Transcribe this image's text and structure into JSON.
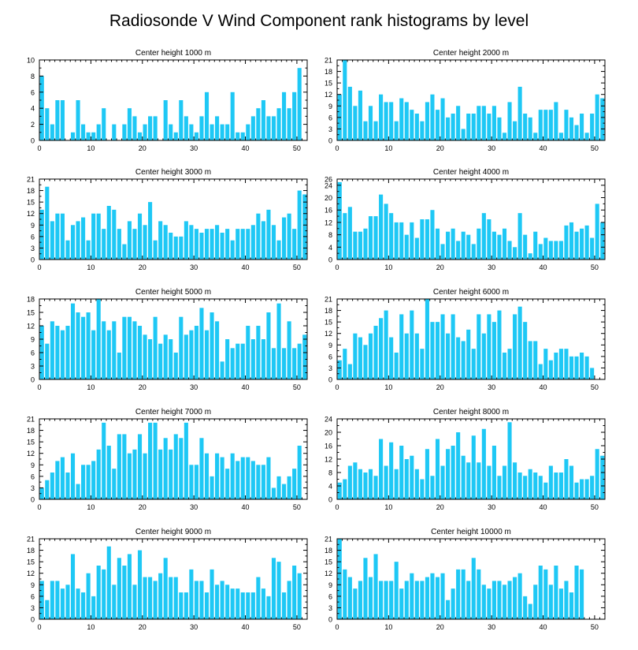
{
  "figure": {
    "title": "Radiosonde V Wind Component rank histograms by level",
    "bar_color": "#1EC8F5",
    "frame_color": "#000000"
  },
  "chart_data": [
    {
      "type": "bar",
      "title": "Center height 1000 m",
      "x": [
        0,
        1,
        2,
        3,
        4,
        5,
        6,
        7,
        8,
        9,
        10,
        11,
        12,
        13,
        14,
        15,
        16,
        17,
        18,
        19,
        20,
        21,
        22,
        23,
        24,
        25,
        26,
        27,
        28,
        29,
        30,
        31,
        32,
        33,
        34,
        35,
        36,
        37,
        38,
        39,
        40,
        41,
        42,
        43,
        44,
        45,
        46,
        47,
        48,
        49,
        50,
        51
      ],
      "values": [
        8,
        4,
        2,
        5,
        5,
        0,
        1,
        5,
        2,
        1,
        1,
        2,
        4,
        0,
        2,
        0,
        2,
        4,
        3,
        1,
        2,
        3,
        3,
        0,
        5,
        2,
        1,
        5,
        3,
        2,
        1,
        3,
        6,
        2,
        3,
        2,
        2,
        6,
        1,
        1,
        2,
        3,
        4,
        5,
        3,
        3,
        4,
        6,
        4,
        6,
        9,
        0
      ],
      "xlim": [
        0,
        52
      ],
      "ylim": [
        0,
        10
      ],
      "xticks": [
        0,
        10,
        20,
        30,
        40,
        50
      ],
      "yticks": [
        0,
        2,
        4,
        6,
        8,
        10
      ],
      "grid": false
    },
    {
      "type": "bar",
      "title": "Center height 2000 m",
      "x": [
        0,
        1,
        2,
        3,
        4,
        5,
        6,
        7,
        8,
        9,
        10,
        11,
        12,
        13,
        14,
        15,
        16,
        17,
        18,
        19,
        20,
        21,
        22,
        23,
        24,
        25,
        26,
        27,
        28,
        29,
        30,
        31,
        32,
        33,
        34,
        35,
        36,
        37,
        38,
        39,
        40,
        41,
        42,
        43,
        44,
        45,
        46,
        47,
        48,
        49,
        50,
        51
      ],
      "values": [
        12,
        21,
        14,
        9,
        13,
        5,
        9,
        5,
        12,
        10,
        10,
        5,
        11,
        10,
        8,
        7,
        5,
        10,
        12,
        8,
        11,
        6,
        7,
        9,
        3,
        7,
        7,
        9,
        9,
        7,
        9,
        6,
        2,
        10,
        5,
        14,
        7,
        6,
        2,
        8,
        8,
        8,
        10,
        2,
        8,
        6,
        4,
        7,
        2,
        7,
        12,
        11
      ],
      "xlim": [
        0,
        52
      ],
      "ylim": [
        0,
        21
      ],
      "xticks": [
        0,
        10,
        20,
        30,
        40,
        50
      ],
      "yticks": [
        0,
        3,
        6,
        9,
        12,
        15,
        18,
        21
      ],
      "grid": false
    },
    {
      "type": "bar",
      "title": "Center height 3000 m",
      "x": [
        0,
        1,
        2,
        3,
        4,
        5,
        6,
        7,
        8,
        9,
        10,
        11,
        12,
        13,
        14,
        15,
        16,
        17,
        18,
        19,
        20,
        21,
        22,
        23,
        24,
        25,
        26,
        27,
        28,
        29,
        30,
        31,
        32,
        33,
        34,
        35,
        36,
        37,
        38,
        39,
        40,
        41,
        42,
        43,
        44,
        45,
        46,
        47,
        48,
        49,
        50,
        51
      ],
      "values": [
        13,
        19,
        10,
        12,
        12,
        5,
        9,
        10,
        11,
        5,
        12,
        12,
        8,
        14,
        13,
        8,
        4,
        10,
        8,
        12,
        9,
        15,
        5,
        10,
        9,
        7,
        6,
        6,
        10,
        9,
        8,
        7,
        8,
        8,
        9,
        7,
        8,
        5,
        8,
        8,
        8,
        9,
        12,
        10,
        13,
        9,
        5,
        11,
        12,
        8,
        18,
        17
      ],
      "xlim": [
        0,
        52
      ],
      "ylim": [
        0,
        21
      ],
      "xticks": [
        0,
        10,
        20,
        30,
        40,
        50
      ],
      "yticks": [
        0,
        3,
        6,
        9,
        12,
        15,
        18,
        21
      ],
      "grid": false
    },
    {
      "type": "bar",
      "title": "Center height 4000 m",
      "x": [
        0,
        1,
        2,
        3,
        4,
        5,
        6,
        7,
        8,
        9,
        10,
        11,
        12,
        13,
        14,
        15,
        16,
        17,
        18,
        19,
        20,
        21,
        22,
        23,
        24,
        25,
        26,
        27,
        28,
        29,
        30,
        31,
        32,
        33,
        34,
        35,
        36,
        37,
        38,
        39,
        40,
        41,
        42,
        43,
        44,
        45,
        46,
        47,
        48,
        49,
        50,
        51
      ],
      "values": [
        25,
        15,
        17,
        9,
        9,
        10,
        14,
        14,
        21,
        18,
        15,
        12,
        12,
        8,
        12,
        7,
        13,
        13,
        16,
        10,
        5,
        9,
        10,
        6,
        9,
        8,
        5,
        10,
        15,
        13,
        9,
        8,
        10,
        6,
        4,
        15,
        8,
        2,
        9,
        5,
        7,
        6,
        6,
        6,
        11,
        12,
        9,
        10,
        11,
        7,
        18,
        12
      ],
      "xlim": [
        0,
        52
      ],
      "ylim": [
        0,
        26
      ],
      "xticks": [
        0,
        10,
        20,
        30,
        40,
        50
      ],
      "yticks": [
        0,
        4,
        8,
        12,
        16,
        20,
        24,
        26
      ],
      "grid": false
    },
    {
      "type": "bar",
      "title": "Center height 5000 m",
      "x": [
        0,
        1,
        2,
        3,
        4,
        5,
        6,
        7,
        8,
        9,
        10,
        11,
        12,
        13,
        14,
        15,
        16,
        17,
        18,
        19,
        20,
        21,
        22,
        23,
        24,
        25,
        26,
        27,
        28,
        29,
        30,
        31,
        32,
        33,
        34,
        35,
        36,
        37,
        38,
        39,
        40,
        41,
        42,
        43,
        44,
        45,
        46,
        47,
        48,
        49,
        50,
        51
      ],
      "values": [
        12,
        8,
        13,
        12,
        11,
        12,
        17,
        15,
        14,
        15,
        11,
        18,
        13,
        11,
        13,
        6,
        14,
        14,
        13,
        12,
        10,
        9,
        14,
        8,
        10,
        9,
        6,
        14,
        10,
        11,
        12,
        16,
        11,
        15,
        13,
        4,
        9,
        7,
        8,
        8,
        12,
        9,
        12,
        9,
        15,
        7,
        17,
        7,
        13,
        7,
        8,
        10
      ],
      "xlim": [
        0,
        52
      ],
      "ylim": [
        0,
        18
      ],
      "xticks": [
        0,
        10,
        20,
        30,
        40,
        50
      ],
      "yticks": [
        0,
        3,
        6,
        9,
        12,
        15,
        18
      ],
      "grid": false
    },
    {
      "type": "bar",
      "title": "Center height 6000 m",
      "x": [
        0,
        1,
        2,
        3,
        4,
        5,
        6,
        7,
        8,
        9,
        10,
        11,
        12,
        13,
        14,
        15,
        16,
        17,
        18,
        19,
        20,
        21,
        22,
        23,
        24,
        25,
        26,
        27,
        28,
        29,
        30,
        31,
        32,
        33,
        34,
        35,
        36,
        37,
        38,
        39,
        40,
        41,
        42,
        43,
        44,
        45,
        46,
        47,
        48,
        49,
        50,
        51
      ],
      "values": [
        5,
        8,
        4,
        12,
        11,
        9,
        12,
        14,
        16,
        18,
        11,
        7,
        17,
        12,
        18,
        12,
        8,
        21,
        15,
        15,
        17,
        12,
        17,
        11,
        10,
        13,
        8,
        17,
        12,
        17,
        15,
        18,
        7,
        8,
        17,
        19,
        15,
        10,
        10,
        4,
        8,
        5,
        7,
        8,
        8,
        6,
        6,
        7,
        6,
        3,
        0,
        0
      ],
      "xlim": [
        0,
        52
      ],
      "ylim": [
        0,
        21
      ],
      "xticks": [
        0,
        10,
        20,
        30,
        40,
        50
      ],
      "yticks": [
        0,
        3,
        6,
        9,
        12,
        15,
        18,
        21
      ],
      "grid": false
    },
    {
      "type": "bar",
      "title": "Center height 7000 m",
      "x": [
        0,
        1,
        2,
        3,
        4,
        5,
        6,
        7,
        8,
        9,
        10,
        11,
        12,
        13,
        14,
        15,
        16,
        17,
        18,
        19,
        20,
        21,
        22,
        23,
        24,
        25,
        26,
        27,
        28,
        29,
        30,
        31,
        32,
        33,
        34,
        35,
        36,
        37,
        38,
        39,
        40,
        41,
        42,
        43,
        44,
        45,
        46,
        47,
        48,
        49,
        50,
        51
      ],
      "values": [
        3,
        5,
        7,
        10,
        11,
        7,
        12,
        4,
        9,
        9,
        10,
        13,
        20,
        14,
        8,
        17,
        17,
        12,
        13,
        17,
        12,
        20,
        20,
        13,
        16,
        13,
        17,
        16,
        20,
        9,
        9,
        16,
        12,
        6,
        12,
        11,
        8,
        12,
        10,
        11,
        11,
        10,
        9,
        9,
        11,
        3,
        6,
        4,
        6,
        8,
        14,
        0
      ],
      "xlim": [
        0,
        52
      ],
      "ylim": [
        0,
        21
      ],
      "xticks": [
        0,
        10,
        20,
        30,
        40,
        50
      ],
      "yticks": [
        0,
        3,
        6,
        9,
        12,
        15,
        18,
        21
      ],
      "grid": false
    },
    {
      "type": "bar",
      "title": "Center height 8000 m",
      "x": [
        0,
        1,
        2,
        3,
        4,
        5,
        6,
        7,
        8,
        9,
        10,
        11,
        12,
        13,
        14,
        15,
        16,
        17,
        18,
        19,
        20,
        21,
        22,
        23,
        24,
        25,
        26,
        27,
        28,
        29,
        30,
        31,
        32,
        33,
        34,
        35,
        36,
        37,
        38,
        39,
        40,
        41,
        42,
        43,
        44,
        45,
        46,
        47,
        48,
        49,
        50,
        51
      ],
      "values": [
        5,
        6,
        10,
        11,
        9,
        8,
        9,
        7,
        18,
        10,
        17,
        9,
        16,
        12,
        13,
        9,
        6,
        15,
        7,
        18,
        10,
        15,
        16,
        20,
        13,
        11,
        19,
        11,
        21,
        10,
        16,
        7,
        10,
        23,
        11,
        8,
        7,
        9,
        8,
        7,
        5,
        10,
        8,
        8,
        12,
        10,
        5,
        6,
        6,
        7,
        15,
        13
      ],
      "xlim": [
        0,
        52
      ],
      "ylim": [
        0,
        24
      ],
      "xticks": [
        0,
        10,
        20,
        30,
        40,
        50
      ],
      "yticks": [
        0,
        4,
        8,
        12,
        16,
        20,
        24
      ],
      "grid": false
    },
    {
      "type": "bar",
      "title": "Center height 9000 m",
      "x": [
        0,
        1,
        2,
        3,
        4,
        5,
        6,
        7,
        8,
        9,
        10,
        11,
        12,
        13,
        14,
        15,
        16,
        17,
        18,
        19,
        20,
        21,
        22,
        23,
        24,
        25,
        26,
        27,
        28,
        29,
        30,
        31,
        32,
        33,
        34,
        35,
        36,
        37,
        38,
        39,
        40,
        41,
        42,
        43,
        44,
        45,
        46,
        47,
        48,
        49,
        50,
        51
      ],
      "values": [
        10,
        5,
        10,
        10,
        8,
        9,
        17,
        8,
        7,
        12,
        6,
        14,
        13,
        19,
        9,
        16,
        14,
        17,
        9,
        18,
        11,
        11,
        10,
        12,
        16,
        11,
        11,
        7,
        7,
        13,
        10,
        10,
        7,
        13,
        9,
        10,
        9,
        8,
        8,
        7,
        7,
        7,
        11,
        8,
        6,
        16,
        15,
        7,
        10,
        14,
        12,
        0
      ],
      "xlim": [
        0,
        52
      ],
      "ylim": [
        0,
        21
      ],
      "xticks": [
        0,
        10,
        20,
        30,
        40,
        50
      ],
      "yticks": [
        0,
        3,
        6,
        9,
        12,
        15,
        18,
        21
      ],
      "grid": false
    },
    {
      "type": "bar",
      "title": "Center height 10000 m",
      "x": [
        0,
        1,
        2,
        3,
        4,
        5,
        6,
        7,
        8,
        9,
        10,
        11,
        12,
        13,
        14,
        15,
        16,
        17,
        18,
        19,
        20,
        21,
        22,
        23,
        24,
        25,
        26,
        27,
        28,
        29,
        30,
        31,
        32,
        33,
        34,
        35,
        36,
        37,
        38,
        39,
        40,
        41,
        42,
        43,
        44,
        45,
        46,
        47,
        48,
        49,
        50,
        51
      ],
      "values": [
        21,
        13,
        11,
        8,
        10,
        16,
        11,
        17,
        10,
        10,
        10,
        15,
        8,
        10,
        12,
        10,
        10,
        11,
        12,
        11,
        12,
        5,
        8,
        13,
        13,
        10,
        16,
        13,
        9,
        8,
        10,
        10,
        9,
        10,
        11,
        12,
        6,
        4,
        9,
        14,
        13,
        9,
        14,
        8,
        10,
        7,
        14,
        13,
        0,
        0,
        0,
        0
      ],
      "xlim": [
        0,
        52
      ],
      "ylim": [
        0,
        21
      ],
      "xticks": [
        0,
        10,
        20,
        30,
        40,
        50
      ],
      "yticks": [
        0,
        3,
        6,
        9,
        12,
        15,
        18,
        21
      ],
      "grid": false
    }
  ]
}
